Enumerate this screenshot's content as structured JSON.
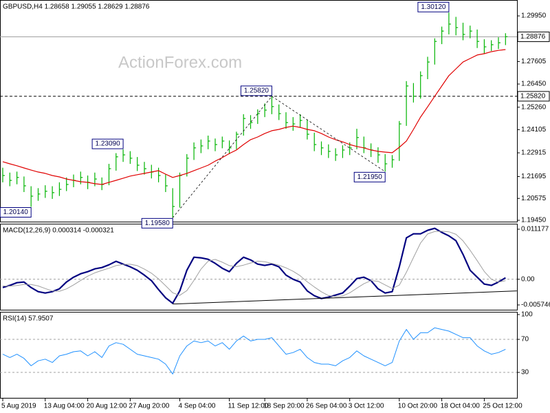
{
  "chart_data": [
    {
      "type": "ohlc",
      "title": "GBPUSD,H4  1.28658 1.29055 1.28629 1.28876",
      "watermark": "ActionForex.com",
      "ylim": [
        1.1938,
        1.3059
      ],
      "yticks": [
        {
          "value": 1.2995,
          "label": "1.29950"
        },
        1.27605,
        {
          "value": 1.2645,
          "label": "1.26450"
        },
        {
          "value": 1.2526,
          "label": "1.25260"
        },
        1.24105,
        1.22915,
        1.21695,
        1.20575,
        {
          "value": 1.1945,
          "label": "1.19450"
        }
      ],
      "hlines": [
        {
          "value": 1.28876,
          "style": "solid"
        },
        {
          "value": 1.2582,
          "label": "1.25820",
          "style": "dashed"
        }
      ],
      "ohlc": {
        "color": "#00b400",
        "high": [
          1.2215,
          1.219,
          1.2195,
          1.217,
          1.212,
          1.211,
          1.2125,
          1.212,
          1.214,
          1.2165,
          1.218,
          1.2195,
          1.2175,
          1.219,
          1.2165,
          1.2235,
          1.229,
          1.2309,
          1.23,
          1.227,
          1.2245,
          1.223,
          1.2215,
          1.218,
          1.211,
          1.219,
          1.2285,
          1.2345,
          1.236,
          1.238,
          1.2365,
          1.2375,
          1.2355,
          1.24,
          1.249,
          1.2485,
          1.2515,
          1.2545,
          1.2582,
          1.254,
          1.25,
          1.2475,
          1.249,
          1.246,
          1.2395,
          1.235,
          1.2335,
          1.2315,
          1.233,
          1.2345,
          1.2415,
          1.2375,
          1.234,
          1.232,
          1.2285,
          1.228,
          1.2455,
          1.266,
          1.265,
          1.271,
          1.2785,
          1.288,
          1.294,
          1.3012,
          1.299,
          1.296,
          1.2945,
          1.2925,
          1.2875,
          1.287,
          1.2885,
          1.2906
        ],
        "low": [
          1.214,
          1.212,
          1.213,
          1.209,
          1.2014,
          1.2045,
          1.206,
          1.2055,
          1.207,
          1.2095,
          1.2115,
          1.213,
          1.2105,
          1.212,
          1.21,
          1.2125,
          1.22,
          1.2245,
          1.2235,
          1.2198,
          1.218,
          1.216,
          1.214,
          1.209,
          1.1958,
          1.201,
          1.217,
          1.2255,
          1.229,
          1.231,
          1.23,
          1.2315,
          1.2285,
          1.231,
          1.238,
          1.2415,
          1.244,
          1.2475,
          1.249,
          1.246,
          1.2415,
          1.2405,
          1.242,
          1.236,
          1.23,
          1.228,
          1.2265,
          1.225,
          1.2265,
          1.228,
          1.231,
          1.229,
          1.227,
          1.224,
          1.2195,
          1.2215,
          1.225,
          1.243,
          1.255,
          1.257,
          1.267,
          1.2745,
          1.285,
          1.29,
          1.2895,
          1.287,
          1.288,
          1.283,
          1.28,
          1.2815,
          1.2825,
          1.2845
        ],
        "close": [
          1.2175,
          1.215,
          1.2165,
          1.2122,
          1.2069,
          1.208,
          1.2094,
          1.2087,
          1.2104,
          1.2129,
          1.215,
          1.2165,
          1.214,
          1.2157,
          1.2129,
          1.221,
          1.2271,
          1.2281,
          1.2264,
          1.2228,
          1.221,
          1.2193,
          1.2175,
          1.2122,
          1.2016,
          1.2175,
          1.2264,
          1.2317,
          1.2327,
          1.2352,
          1.2334,
          1.2352,
          1.2317,
          1.2387,
          1.2468,
          1.2447,
          1.2493,
          1.2511,
          1.2529,
          1.2493,
          1.2447,
          1.244,
          1.2458,
          1.2387,
          1.2334,
          1.2317,
          1.2299,
          1.2281,
          1.2306,
          1.2317,
          1.237,
          1.2317,
          1.2306,
          1.2281,
          1.2235,
          1.2256,
          1.244,
          1.2635,
          1.2582,
          1.2688,
          1.2758,
          1.2864,
          1.2917,
          1.2953,
          1.2935,
          1.29,
          1.2917,
          1.2864,
          1.2836,
          1.2847,
          1.2857,
          1.2888
        ]
      },
      "ma": {
        "color": "#e00000",
        "values": [
          1.2246,
          1.2235,
          1.2225,
          1.2214,
          1.2203,
          1.2193,
          1.2186,
          1.2175,
          1.2168,
          1.2157,
          1.215,
          1.2143,
          1.214,
          1.2133,
          1.2129,
          1.214,
          1.215,
          1.2161,
          1.2172,
          1.2179,
          1.2186,
          1.2193,
          1.22,
          1.2182,
          1.2165,
          1.2175,
          1.2186,
          1.22,
          1.2214,
          1.2228,
          1.2249,
          1.2267,
          1.2288,
          1.2306,
          1.2334,
          1.2359,
          1.2373,
          1.2391,
          1.2405,
          1.2412,
          1.2422,
          1.2429,
          1.2422,
          1.2412,
          1.2405,
          1.2391,
          1.2373,
          1.2359,
          1.2348,
          1.2334,
          1.2324,
          1.2317,
          1.2306,
          1.2299,
          1.2295,
          1.2292,
          1.232,
          1.2352,
          1.2412,
          1.2475,
          1.2528,
          1.2582,
          1.2635,
          1.2688,
          1.2723,
          1.2758,
          1.2776,
          1.2794,
          1.2801,
          1.2811,
          1.2818,
          1.2822
        ]
      },
      "annotations": [
        {
          "value": 1.2014,
          "label": "1.20140",
          "kind": "low"
        },
        {
          "value": 1.2309,
          "label": "1.23090",
          "kind": "high"
        },
        {
          "value": 1.1958,
          "label": "1.19580",
          "kind": "low"
        },
        {
          "value": 1.2582,
          "label": "1.25820",
          "kind": "high"
        },
        {
          "value": 1.2195,
          "label": "1.21950",
          "kind": "low"
        },
        {
          "value": 1.3012,
          "label": "1.30120",
          "kind": "high"
        }
      ]
    },
    {
      "type": "macd",
      "title": "MACD(12,26,9) 0.000314 -0.000321",
      "ylim": [
        -0.00682,
        0.01225
      ],
      "yticks": [
        0.011177,
        {
          "value": 0,
          "label": "0.00"
        },
        -0.005746
      ],
      "levels": [
        0
      ],
      "series": [
        {
          "color": "#000080",
          "values": [
            -0.00185,
            -0.00138,
            -0.00077,
            -0.00062,
            -0.00185,
            -0.00277,
            -0.00308,
            -0.00277,
            -0.00215,
            -0.00062,
            0.00046,
            0.00123,
            0.00169,
            0.00231,
            0.00261,
            0.00323,
            0.004,
            0.00338,
            0.00277,
            0.002,
            0.00092,
            -0.00031,
            -0.00231,
            -0.00415,
            -0.00538,
            -0.00261,
            0.002,
            0.00492,
            0.00477,
            0.00446,
            0.00354,
            0.00246,
            0.00169,
            0.00354,
            0.00492,
            0.00431,
            0.00338,
            0.00308,
            0.00338,
            0.00277,
            0.00092,
            0,
            -0.00062,
            -0.00261,
            -0.00369,
            -0.00431,
            -0.004,
            -0.00354,
            -0.00308,
            -0.00154,
            0.00015,
            0.00046,
            -0.00031,
            -0.00215,
            -0.00308,
            -0.00277,
            0.00277,
            0.00923,
            0.01015,
            0.01015,
            0.01092,
            0.01138,
            0.01046,
            0.00969,
            0.00861,
            0.00554,
            0.002,
            0.00046,
            -0.00108,
            -0.00138,
            -0.00062,
            0.00031
          ]
        },
        {
          "color": "#a0a0a0",
          "values": [
            -0.0015,
            -0.00155,
            -0.0014,
            -0.00116,
            -0.00116,
            -0.0015,
            -0.00208,
            -0.00262,
            -0.00269,
            -0.00216,
            -0.00127,
            -0.00027,
            0.00069,
            0.00142,
            0.00196,
            0.00246,
            0.00304,
            0.00331,
            0.00335,
            0.00304,
            0.00227,
            0.00135,
            8e-05,
            -0.00146,
            -0.00304,
            -0.00361,
            -0.00254,
            -0.00027,
            0.00227,
            0.00404,
            0.00442,
            0.00381,
            0.00304,
            0.00281,
            0.00315,
            0.00362,
            0.00404,
            0.00392,
            0.00354,
            0.00315,
            0.00254,
            0.00177,
            0.00077,
            -0.00058,
            -0.00173,
            -0.00281,
            -0.00365,
            -0.00389,
            -0.00373,
            -0.00304,
            -0.002,
            -0.001,
            -0.00031,
            -0.00046,
            -0.00127,
            -0.00208,
            -0.00131,
            0.00154,
            0.00485,
            0.00808,
            0.01011,
            0.01065,
            0.01073,
            0.01061,
            0.01004,
            0.00858,
            0.00646,
            0.00415,
            0.00173,
            0.0,
            -0.00066,
            -0.00032
          ]
        }
      ],
      "trendline": {
        "x": [
          24,
          72.6
        ],
        "values": [
          -0.00554,
          -0.00261
        ]
      }
    },
    {
      "type": "rsi",
      "title": "RSI(14) 57.9507",
      "ylim": [
        0,
        100
      ],
      "yticks": [
        100,
        70,
        30
      ],
      "levels": [
        70,
        30
      ],
      "categories": [
        "5 Aug 2019",
        null,
        null,
        null,
        null,
        null,
        "13 Aug 04:00",
        null,
        null,
        null,
        null,
        null,
        "20 Aug 12:00",
        null,
        null,
        null,
        null,
        null,
        "27 Aug 20:00",
        null,
        null,
        null,
        null,
        null,
        null,
        "4 Sep 04:00",
        null,
        null,
        null,
        null,
        null,
        null,
        "11 Sep 12:00",
        null,
        null,
        null,
        null,
        "18 Sep 20:00",
        null,
        null,
        null,
        null,
        null,
        "26 Sep 04:00",
        null,
        null,
        null,
        null,
        null,
        "3 Oct 12:00",
        null,
        null,
        null,
        null,
        null,
        null,
        "10 Oct 20:00",
        null,
        null,
        null,
        null,
        null,
        "18 Oct 04:00",
        null,
        null,
        null,
        null,
        null,
        "25 Oct 12:00",
        null,
        null,
        null
      ],
      "series": [
        {
          "color": "#1e90ff",
          "values": [
            52,
            48,
            52,
            47,
            38,
            44,
            46,
            42,
            50,
            52,
            55,
            56,
            50,
            55,
            48,
            62,
            66,
            64,
            58,
            52,
            50,
            48,
            46,
            40,
            28,
            50,
            62,
            68,
            66,
            68,
            62,
            66,
            58,
            68,
            74,
            68,
            70,
            70,
            72,
            62,
            52,
            54,
            58,
            48,
            42,
            40,
            40,
            38,
            44,
            48,
            56,
            50,
            46,
            42,
            38,
            42,
            68,
            82,
            70,
            78,
            78,
            84,
            82,
            80,
            76,
            72,
            72,
            62,
            56,
            52,
            54,
            57.9507
          ]
        }
      ]
    }
  ]
}
